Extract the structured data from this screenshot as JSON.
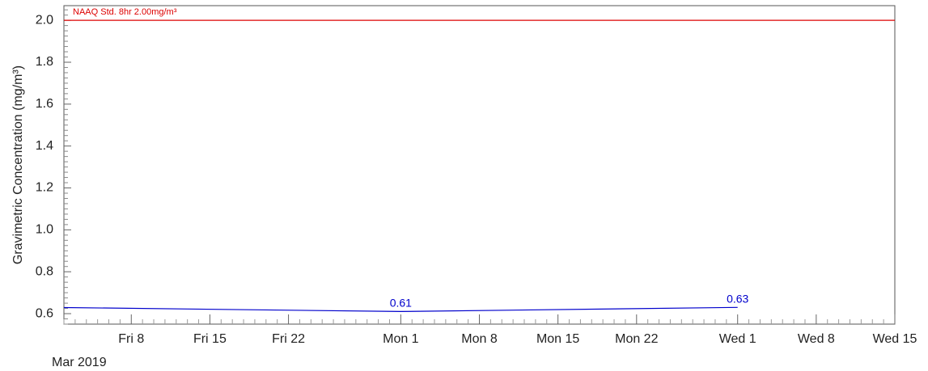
{
  "chart_data": {
    "type": "line",
    "ylabel": "Gravimetric Concentration (mg/m³)",
    "ylim": [
      0.55,
      2.07
    ],
    "y_ticks": [
      "0.6",
      "0.8",
      "1.0",
      "1.2",
      "1.4",
      "1.6",
      "1.8",
      "2.0"
    ],
    "x_axis_date_label": "Mar 2019",
    "x_ticks": [
      {
        "date": "2019-03-08",
        "label": "Fri 8"
      },
      {
        "date": "2019-03-15",
        "label": "Fri 15"
      },
      {
        "date": "2019-03-22",
        "label": "Fri 22"
      },
      {
        "date": "2019-04-01",
        "label": "Mon 1"
      },
      {
        "date": "2019-04-08",
        "label": "Mon 8"
      },
      {
        "date": "2019-04-15",
        "label": "Mon 15"
      },
      {
        "date": "2019-04-22",
        "label": "Mon 22"
      },
      {
        "date": "2019-05-01",
        "label": "Wed 1"
      },
      {
        "date": "2019-05-08",
        "label": "Wed 8"
      },
      {
        "date": "2019-05-15",
        "label": "Wed 15"
      }
    ],
    "xlim": [
      "2019-03-02",
      "2019-05-15"
    ],
    "series": [
      {
        "color": "#0000cc",
        "points": [
          {
            "date": "2019-03-01",
            "value": 0.63,
            "label": "0.63"
          },
          {
            "date": "2019-04-01",
            "value": 0.61,
            "label": "0.61"
          },
          {
            "date": "2019-05-01",
            "value": 0.63,
            "label": "0.63"
          }
        ]
      }
    ],
    "reference_line": {
      "value": 2.0,
      "label": "NAAQ Std. 8hr 2.00mg/m³",
      "color": "#dd0000"
    },
    "grid": false
  }
}
